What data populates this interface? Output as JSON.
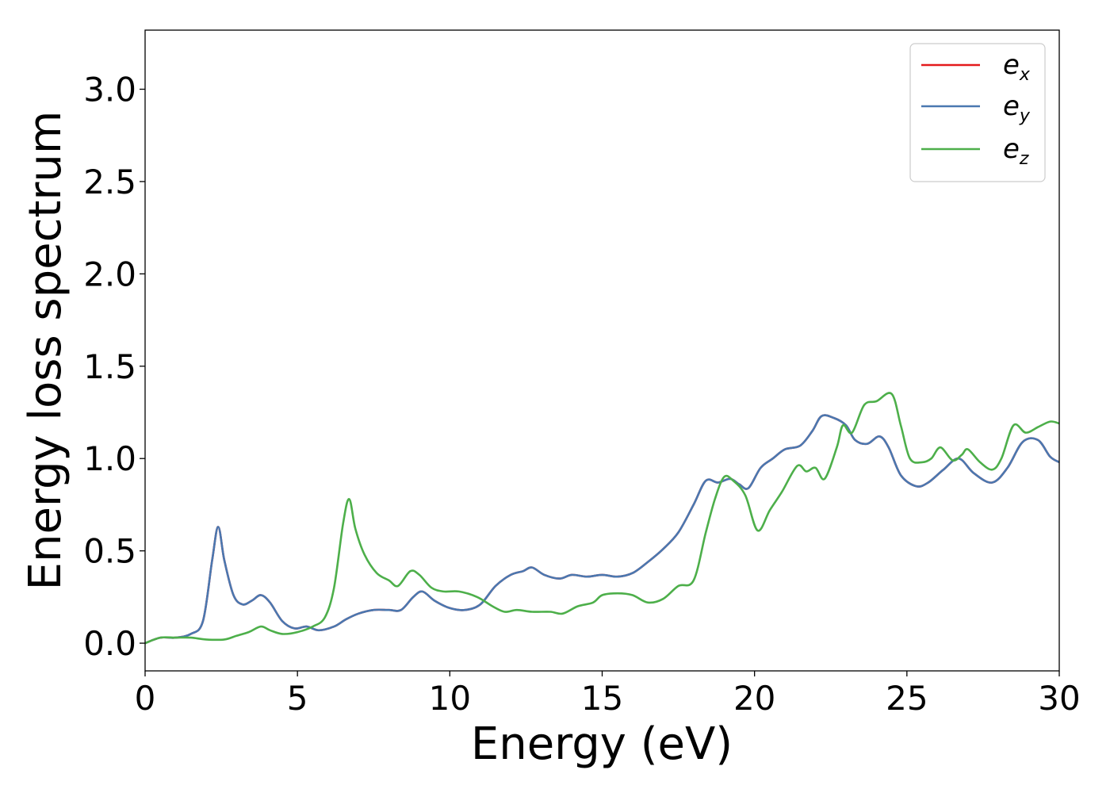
{
  "chart_data": {
    "type": "line",
    "title": "",
    "xlabel": "Energy (eV)",
    "ylabel": "Energy loss spectrum",
    "xlim": [
      0,
      30
    ],
    "ylim": [
      -0.15,
      3.32
    ],
    "xticks": [
      0,
      5,
      10,
      15,
      20,
      25,
      30
    ],
    "xtick_labels": [
      "0",
      "5",
      "10",
      "15",
      "20",
      "25",
      "30"
    ],
    "yticks": [
      0.0,
      0.5,
      1.0,
      1.5,
      2.0,
      2.5,
      3.0
    ],
    "ytick_labels": [
      "0.0",
      "0.5",
      "1.0",
      "1.5",
      "2.0",
      "2.5",
      "3.0"
    ],
    "grid": false,
    "legend_position": "top-right",
    "series": [
      {
        "name": "e_x",
        "legend_main": "e",
        "legend_sub": "x",
        "color": "#e41a1c",
        "points": [
          [
            0,
            0.0
          ],
          [
            0.5,
            0.03
          ],
          [
            1.0,
            0.03
          ],
          [
            1.5,
            0.05
          ],
          [
            1.9,
            0.12
          ],
          [
            2.2,
            0.45
          ],
          [
            2.4,
            0.63
          ],
          [
            2.6,
            0.45
          ],
          [
            2.9,
            0.26
          ],
          [
            3.2,
            0.21
          ],
          [
            3.5,
            0.23
          ],
          [
            3.8,
            0.26
          ],
          [
            4.1,
            0.22
          ],
          [
            4.5,
            0.12
          ],
          [
            4.9,
            0.08
          ],
          [
            5.3,
            0.09
          ],
          [
            5.7,
            0.07
          ],
          [
            6.2,
            0.09
          ],
          [
            6.6,
            0.13
          ],
          [
            7.0,
            0.16
          ],
          [
            7.5,
            0.18
          ],
          [
            8.0,
            0.18
          ],
          [
            8.4,
            0.18
          ],
          [
            8.8,
            0.25
          ],
          [
            9.1,
            0.28
          ],
          [
            9.5,
            0.23
          ],
          [
            10.0,
            0.19
          ],
          [
            10.5,
            0.18
          ],
          [
            11.0,
            0.21
          ],
          [
            11.5,
            0.31
          ],
          [
            12.0,
            0.37
          ],
          [
            12.4,
            0.39
          ],
          [
            12.7,
            0.41
          ],
          [
            13.1,
            0.37
          ],
          [
            13.6,
            0.35
          ],
          [
            14.0,
            0.37
          ],
          [
            14.5,
            0.36
          ],
          [
            15.0,
            0.37
          ],
          [
            15.5,
            0.36
          ],
          [
            16.0,
            0.38
          ],
          [
            16.5,
            0.44
          ],
          [
            17.0,
            0.51
          ],
          [
            17.5,
            0.6
          ],
          [
            18.0,
            0.75
          ],
          [
            18.4,
            0.88
          ],
          [
            18.8,
            0.87
          ],
          [
            19.2,
            0.89
          ],
          [
            19.5,
            0.86
          ],
          [
            19.8,
            0.84
          ],
          [
            20.2,
            0.95
          ],
          [
            20.6,
            1.0
          ],
          [
            21.0,
            1.05
          ],
          [
            21.5,
            1.07
          ],
          [
            21.9,
            1.15
          ],
          [
            22.2,
            1.23
          ],
          [
            22.6,
            1.22
          ],
          [
            23.0,
            1.18
          ],
          [
            23.3,
            1.1
          ],
          [
            23.7,
            1.08
          ],
          [
            24.1,
            1.12
          ],
          [
            24.4,
            1.06
          ],
          [
            24.8,
            0.91
          ],
          [
            25.3,
            0.85
          ],
          [
            25.7,
            0.87
          ],
          [
            26.2,
            0.94
          ],
          [
            26.7,
            1.0
          ],
          [
            27.2,
            0.92
          ],
          [
            27.8,
            0.87
          ],
          [
            28.3,
            0.95
          ],
          [
            28.8,
            1.09
          ],
          [
            29.3,
            1.1
          ],
          [
            29.7,
            1.01
          ],
          [
            30.0,
            0.98
          ]
        ]
      },
      {
        "name": "e_y",
        "legend_main": "e",
        "legend_sub": "y",
        "color": "#4a78b0",
        "points": [
          [
            0,
            0.0
          ],
          [
            0.5,
            0.03
          ],
          [
            1.0,
            0.03
          ],
          [
            1.5,
            0.05
          ],
          [
            1.9,
            0.12
          ],
          [
            2.2,
            0.45
          ],
          [
            2.4,
            0.63
          ],
          [
            2.6,
            0.45
          ],
          [
            2.9,
            0.26
          ],
          [
            3.2,
            0.21
          ],
          [
            3.5,
            0.23
          ],
          [
            3.8,
            0.26
          ],
          [
            4.1,
            0.22
          ],
          [
            4.5,
            0.12
          ],
          [
            4.9,
            0.08
          ],
          [
            5.3,
            0.09
          ],
          [
            5.7,
            0.07
          ],
          [
            6.2,
            0.09
          ],
          [
            6.6,
            0.13
          ],
          [
            7.0,
            0.16
          ],
          [
            7.5,
            0.18
          ],
          [
            8.0,
            0.18
          ],
          [
            8.4,
            0.18
          ],
          [
            8.8,
            0.25
          ],
          [
            9.1,
            0.28
          ],
          [
            9.5,
            0.23
          ],
          [
            10.0,
            0.19
          ],
          [
            10.5,
            0.18
          ],
          [
            11.0,
            0.21
          ],
          [
            11.5,
            0.31
          ],
          [
            12.0,
            0.37
          ],
          [
            12.4,
            0.39
          ],
          [
            12.7,
            0.41
          ],
          [
            13.1,
            0.37
          ],
          [
            13.6,
            0.35
          ],
          [
            14.0,
            0.37
          ],
          [
            14.5,
            0.36
          ],
          [
            15.0,
            0.37
          ],
          [
            15.5,
            0.36
          ],
          [
            16.0,
            0.38
          ],
          [
            16.5,
            0.44
          ],
          [
            17.0,
            0.51
          ],
          [
            17.5,
            0.6
          ],
          [
            18.0,
            0.75
          ],
          [
            18.4,
            0.88
          ],
          [
            18.8,
            0.87
          ],
          [
            19.2,
            0.89
          ],
          [
            19.5,
            0.86
          ],
          [
            19.8,
            0.84
          ],
          [
            20.2,
            0.95
          ],
          [
            20.6,
            1.0
          ],
          [
            21.0,
            1.05
          ],
          [
            21.5,
            1.07
          ],
          [
            21.9,
            1.15
          ],
          [
            22.2,
            1.23
          ],
          [
            22.6,
            1.22
          ],
          [
            23.0,
            1.18
          ],
          [
            23.3,
            1.1
          ],
          [
            23.7,
            1.08
          ],
          [
            24.1,
            1.12
          ],
          [
            24.4,
            1.06
          ],
          [
            24.8,
            0.91
          ],
          [
            25.3,
            0.85
          ],
          [
            25.7,
            0.87
          ],
          [
            26.2,
            0.94
          ],
          [
            26.7,
            1.0
          ],
          [
            27.2,
            0.92
          ],
          [
            27.8,
            0.87
          ],
          [
            28.3,
            0.95
          ],
          [
            28.8,
            1.09
          ],
          [
            29.3,
            1.1
          ],
          [
            29.7,
            1.01
          ],
          [
            30.0,
            0.98
          ]
        ]
      },
      {
        "name": "e_z",
        "legend_main": "e",
        "legend_sub": "z",
        "color": "#4daf4a",
        "points": [
          [
            0,
            0.0
          ],
          [
            0.5,
            0.03
          ],
          [
            1.0,
            0.03
          ],
          [
            1.5,
            0.03
          ],
          [
            2.0,
            0.02
          ],
          [
            2.6,
            0.02
          ],
          [
            3.0,
            0.04
          ],
          [
            3.4,
            0.06
          ],
          [
            3.8,
            0.09
          ],
          [
            4.1,
            0.07
          ],
          [
            4.5,
            0.05
          ],
          [
            5.0,
            0.06
          ],
          [
            5.5,
            0.09
          ],
          [
            5.9,
            0.14
          ],
          [
            6.2,
            0.3
          ],
          [
            6.5,
            0.65
          ],
          [
            6.7,
            0.78
          ],
          [
            6.9,
            0.62
          ],
          [
            7.2,
            0.48
          ],
          [
            7.6,
            0.38
          ],
          [
            8.0,
            0.34
          ],
          [
            8.3,
            0.31
          ],
          [
            8.7,
            0.39
          ],
          [
            9.0,
            0.37
          ],
          [
            9.4,
            0.3
          ],
          [
            9.8,
            0.28
          ],
          [
            10.3,
            0.28
          ],
          [
            10.9,
            0.25
          ],
          [
            11.4,
            0.2
          ],
          [
            11.8,
            0.17
          ],
          [
            12.2,
            0.18
          ],
          [
            12.7,
            0.17
          ],
          [
            13.3,
            0.17
          ],
          [
            13.7,
            0.16
          ],
          [
            14.2,
            0.2
          ],
          [
            14.7,
            0.22
          ],
          [
            15.0,
            0.26
          ],
          [
            15.5,
            0.27
          ],
          [
            16.0,
            0.26
          ],
          [
            16.5,
            0.22
          ],
          [
            17.0,
            0.24
          ],
          [
            17.5,
            0.31
          ],
          [
            18.0,
            0.34
          ],
          [
            18.4,
            0.6
          ],
          [
            18.7,
            0.78
          ],
          [
            19.0,
            0.9
          ],
          [
            19.3,
            0.88
          ],
          [
            19.7,
            0.8
          ],
          [
            20.1,
            0.61
          ],
          [
            20.5,
            0.72
          ],
          [
            20.9,
            0.82
          ],
          [
            21.4,
            0.96
          ],
          [
            21.7,
            0.93
          ],
          [
            22.0,
            0.95
          ],
          [
            22.3,
            0.89
          ],
          [
            22.7,
            1.06
          ],
          [
            22.9,
            1.18
          ],
          [
            23.2,
            1.14
          ],
          [
            23.6,
            1.29
          ],
          [
            24.0,
            1.31
          ],
          [
            24.5,
            1.35
          ],
          [
            24.8,
            1.18
          ],
          [
            25.1,
            1.0
          ],
          [
            25.5,
            0.98
          ],
          [
            25.8,
            1.0
          ],
          [
            26.1,
            1.06
          ],
          [
            26.5,
            0.99
          ],
          [
            26.8,
            1.02
          ],
          [
            27.0,
            1.05
          ],
          [
            27.4,
            0.98
          ],
          [
            27.8,
            0.94
          ],
          [
            28.1,
            1.0
          ],
          [
            28.5,
            1.18
          ],
          [
            28.9,
            1.14
          ],
          [
            29.3,
            1.17
          ],
          [
            29.7,
            1.2
          ],
          [
            30.0,
            1.19
          ]
        ]
      }
    ]
  }
}
